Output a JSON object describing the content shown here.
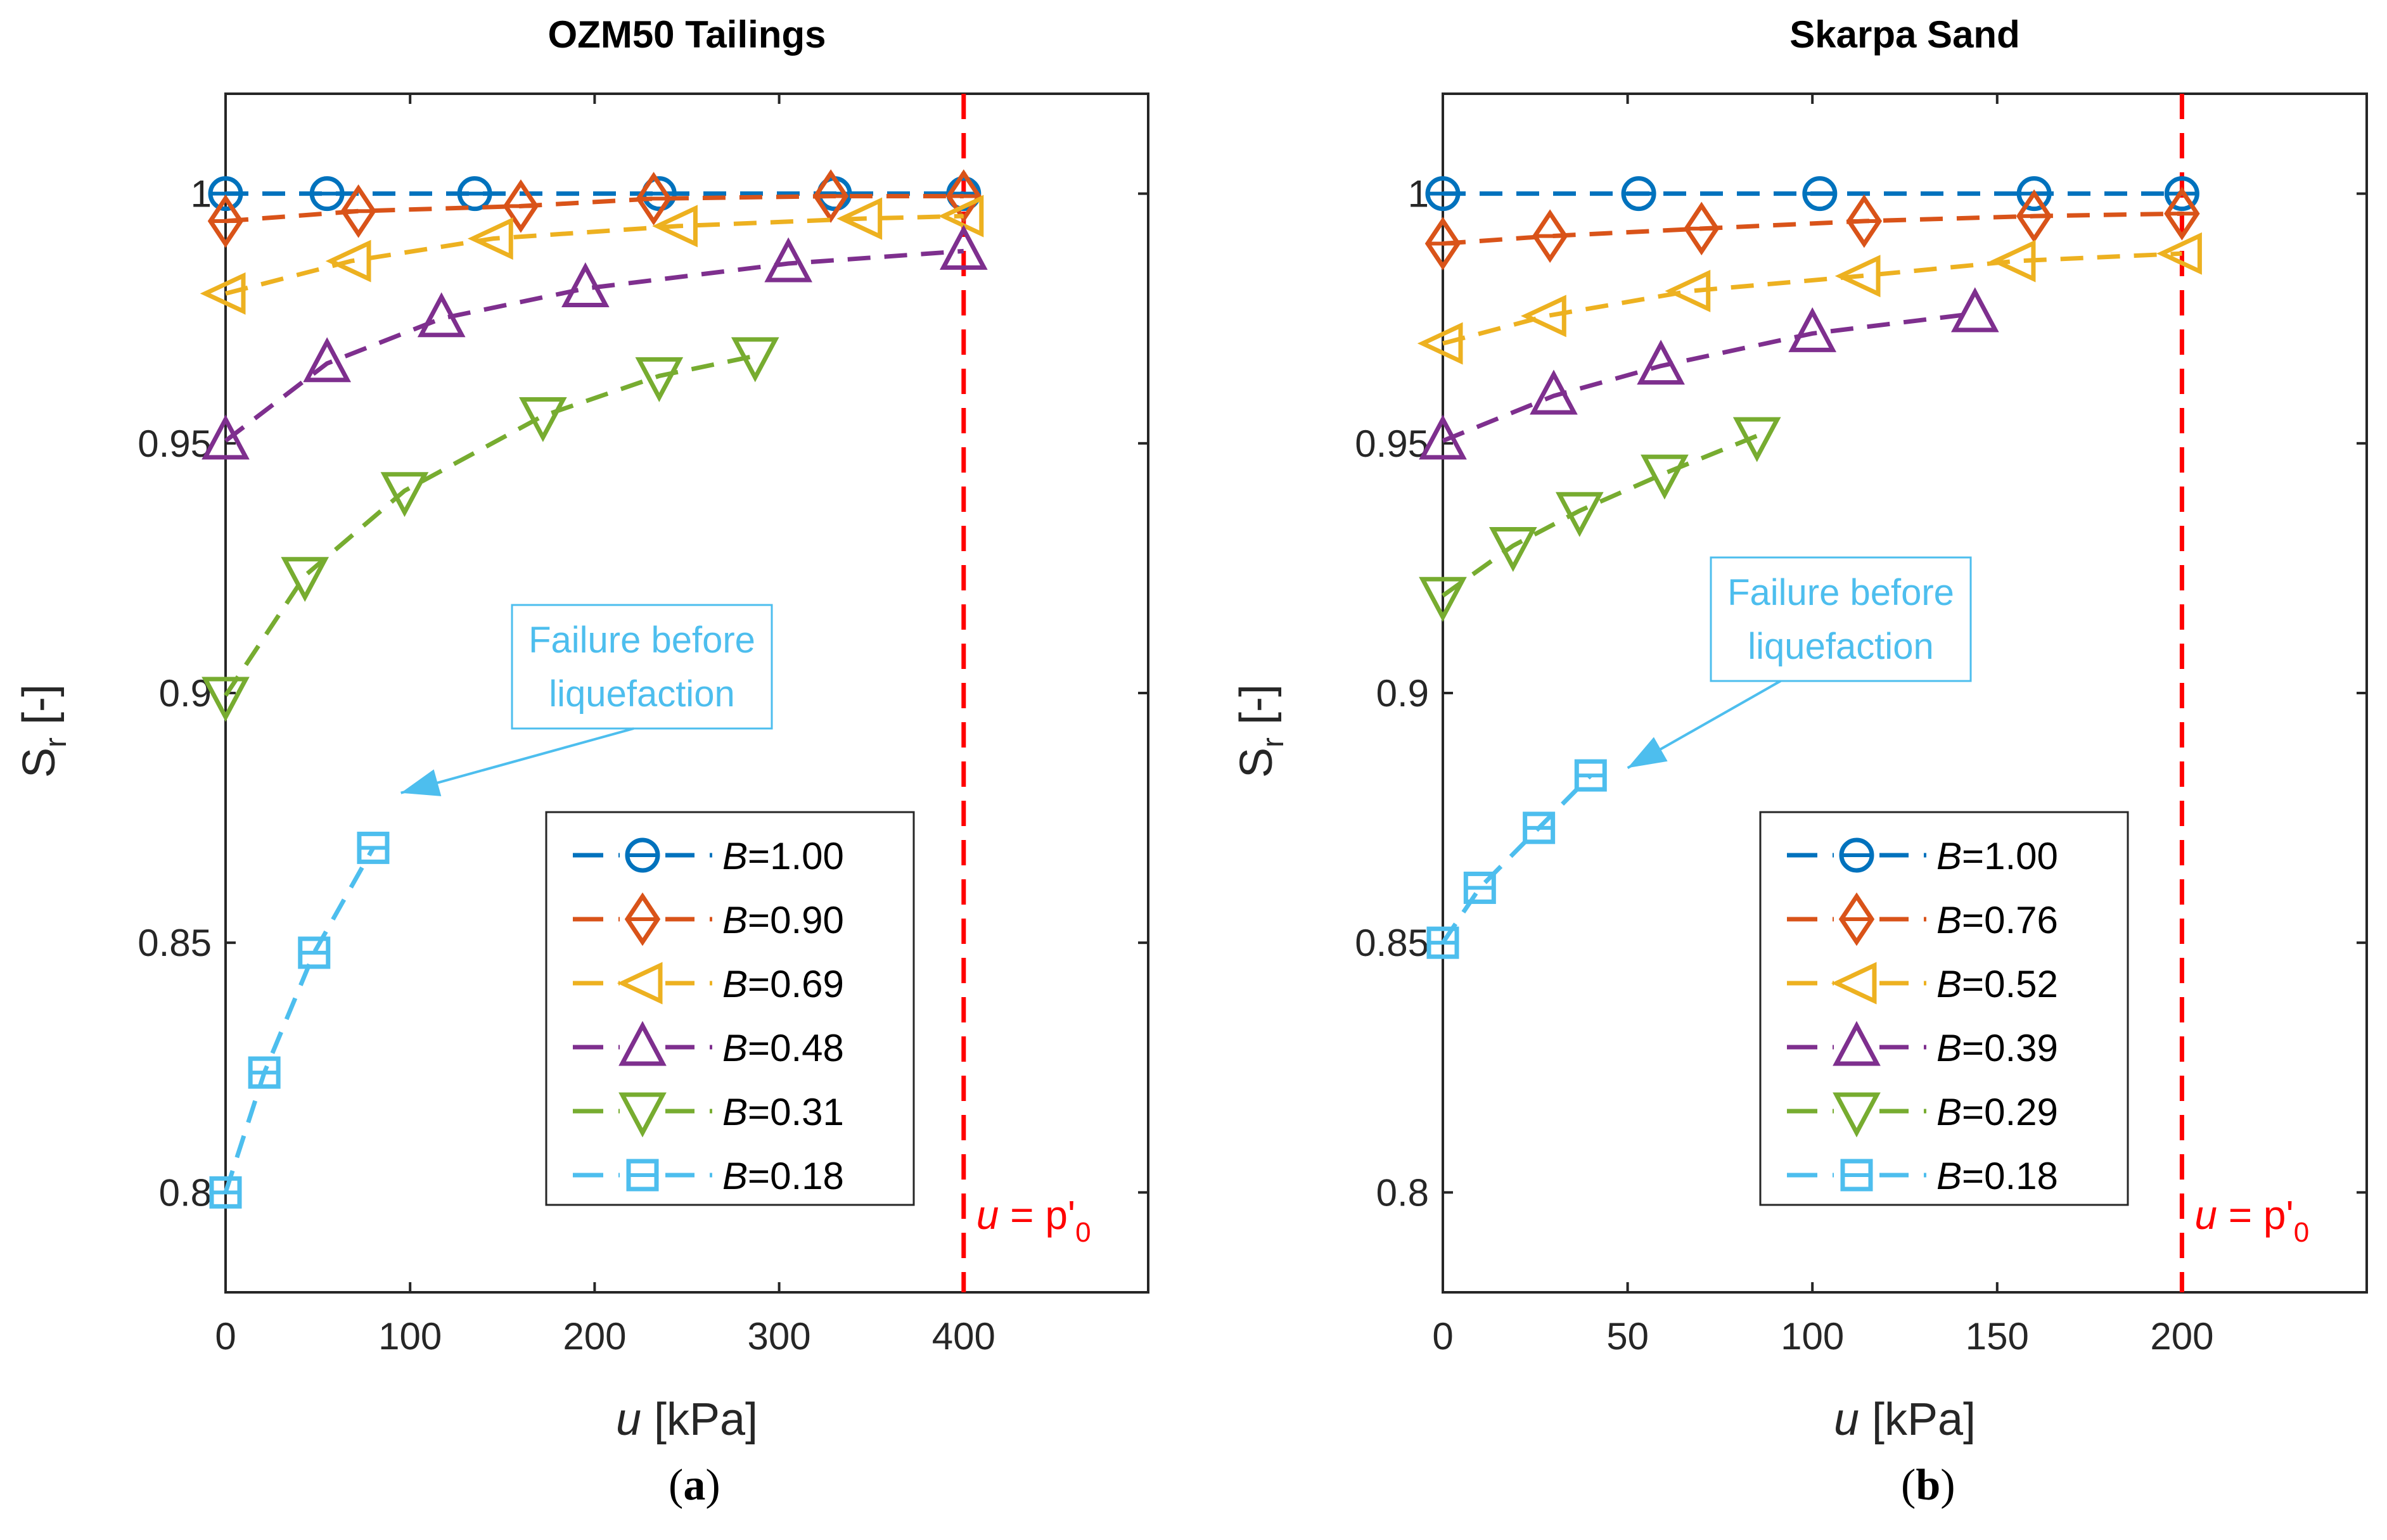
{
  "chart_data": [
    {
      "id": "a",
      "type": "line",
      "title": "OZM50 Tailings",
      "xlabel": "u [kPa]",
      "ylabel": "Sr [-]",
      "xlim": [
        0,
        500
      ],
      "ylim": [
        0.78,
        1.02
      ],
      "xticks": [
        0,
        100,
        200,
        300,
        400
      ],
      "xtick_labels": [
        "0",
        "100",
        "200",
        "300",
        "400"
      ],
      "yticks": [
        0.8,
        0.85,
        0.9,
        0.95,
        1.0
      ],
      "ytick_labels": [
        "0.8",
        "0.85",
        "0.9",
        "0.95",
        "1"
      ],
      "grid": false,
      "legend_position": "bottom-right",
      "reference_line": {
        "x": 400,
        "label": "u = p'0",
        "color": "#FF0000"
      },
      "annotation": {
        "text_line1": "Failure before",
        "text_line2": "liquefaction",
        "arrow_to": [
          95,
          0.88
        ],
        "color": "#4DBEEE"
      },
      "sublabel": "(a)",
      "series": [
        {
          "name": "B=1.00",
          "B": "1.00",
          "marker": "circle",
          "color": "#0072BD",
          "x": [
            0,
            55,
            135,
            235,
            330,
            400
          ],
          "y": [
            1.0,
            1.0,
            1.0,
            1.0,
            1.0,
            1.0
          ]
        },
        {
          "name": "B=0.90",
          "B": "0.90",
          "marker": "diamond",
          "color": "#D95319",
          "x": [
            0,
            72,
            160,
            232,
            328,
            400
          ],
          "y": [
            0.9945,
            0.9965,
            0.9975,
            0.999,
            0.9995,
            0.9995
          ]
        },
        {
          "name": "B=0.69",
          "B": "0.69",
          "marker": "triangle-left",
          "color": "#EDB120",
          "x": [
            0,
            68,
            145,
            245,
            345,
            400
          ],
          "y": [
            0.98,
            0.9865,
            0.991,
            0.9935,
            0.995,
            0.9955
          ]
        },
        {
          "name": "B=0.48",
          "B": "0.48",
          "marker": "triangle-up",
          "color": "#7E2F8E",
          "x": [
            0,
            55,
            117,
            195,
            305,
            400
          ],
          "y": [
            0.9505,
            0.966,
            0.975,
            0.981,
            0.986,
            0.9885
          ]
        },
        {
          "name": "B=0.31",
          "B": "0.31",
          "marker": "triangle-down",
          "color": "#77AC30",
          "x": [
            0,
            43,
            97,
            172,
            235,
            287
          ],
          "y": [
            0.8995,
            0.9235,
            0.9405,
            0.9555,
            0.9635,
            0.9675
          ]
        },
        {
          "name": "B=0.18",
          "B": "0.18",
          "marker": "square",
          "color": "#4DBEEE",
          "x": [
            0,
            21,
            48,
            80
          ],
          "y": [
            0.8,
            0.824,
            0.848,
            0.869
          ]
        }
      ]
    },
    {
      "id": "b",
      "type": "line",
      "title": "Skarpa Sand",
      "xlabel": "u [kPa]",
      "ylabel": "Sr [-]",
      "xlim": [
        0,
        250
      ],
      "ylim": [
        0.78,
        1.02
      ],
      "xticks": [
        0,
        50,
        100,
        150,
        200
      ],
      "xtick_labels": [
        "0",
        "50",
        "100",
        "150",
        "200"
      ],
      "yticks": [
        0.8,
        0.85,
        0.9,
        0.95,
        1.0
      ],
      "ytick_labels": [
        "0.8",
        "0.85",
        "0.9",
        "0.95",
        "1"
      ],
      "grid": false,
      "legend_position": "bottom-right",
      "reference_line": {
        "x": 200,
        "label": "u = p'0",
        "color": "#FF0000"
      },
      "annotation": {
        "text_line1": "Failure before",
        "text_line2": "liquefaction",
        "arrow_to": [
          50,
          0.885
        ],
        "color": "#4DBEEE"
      },
      "sublabel": "(b)",
      "series": [
        {
          "name": "B=1.00",
          "B": "1.00",
          "marker": "circle",
          "color": "#0072BD",
          "x": [
            0,
            53,
            102,
            160,
            200
          ],
          "y": [
            1.0,
            1.0,
            1.0,
            1.0,
            1.0
          ]
        },
        {
          "name": "B=0.76",
          "B": "0.76",
          "marker": "diamond",
          "color": "#D95319",
          "x": [
            0,
            29,
            70,
            114,
            160,
            200
          ],
          "y": [
            0.99,
            0.9915,
            0.993,
            0.9945,
            0.9955,
            0.996
          ]
        },
        {
          "name": "B=0.52",
          "B": "0.52",
          "marker": "triangle-left",
          "color": "#EDB120",
          "x": [
            0,
            28,
            67,
            113,
            155,
            200
          ],
          "y": [
            0.97,
            0.9755,
            0.9805,
            0.9835,
            0.9865,
            0.988
          ]
        },
        {
          "name": "B=0.39",
          "B": "0.39",
          "marker": "triangle-up",
          "color": "#7E2F8E",
          "x": [
            0,
            30,
            59,
            100,
            144
          ],
          "y": [
            0.9505,
            0.9595,
            0.9655,
            0.972,
            0.976
          ]
        },
        {
          "name": "B=0.29",
          "B": "0.29",
          "marker": "triangle-down",
          "color": "#77AC30",
          "x": [
            0,
            19,
            37,
            60,
            85
          ],
          "y": [
            0.9195,
            0.9295,
            0.9365,
            0.944,
            0.9515
          ]
        },
        {
          "name": "B=0.18",
          "B": "0.18",
          "marker": "square",
          "color": "#4DBEEE",
          "x": [
            0,
            10,
            26,
            40
          ],
          "y": [
            0.85,
            0.861,
            0.873,
            0.8835
          ]
        }
      ]
    }
  ]
}
